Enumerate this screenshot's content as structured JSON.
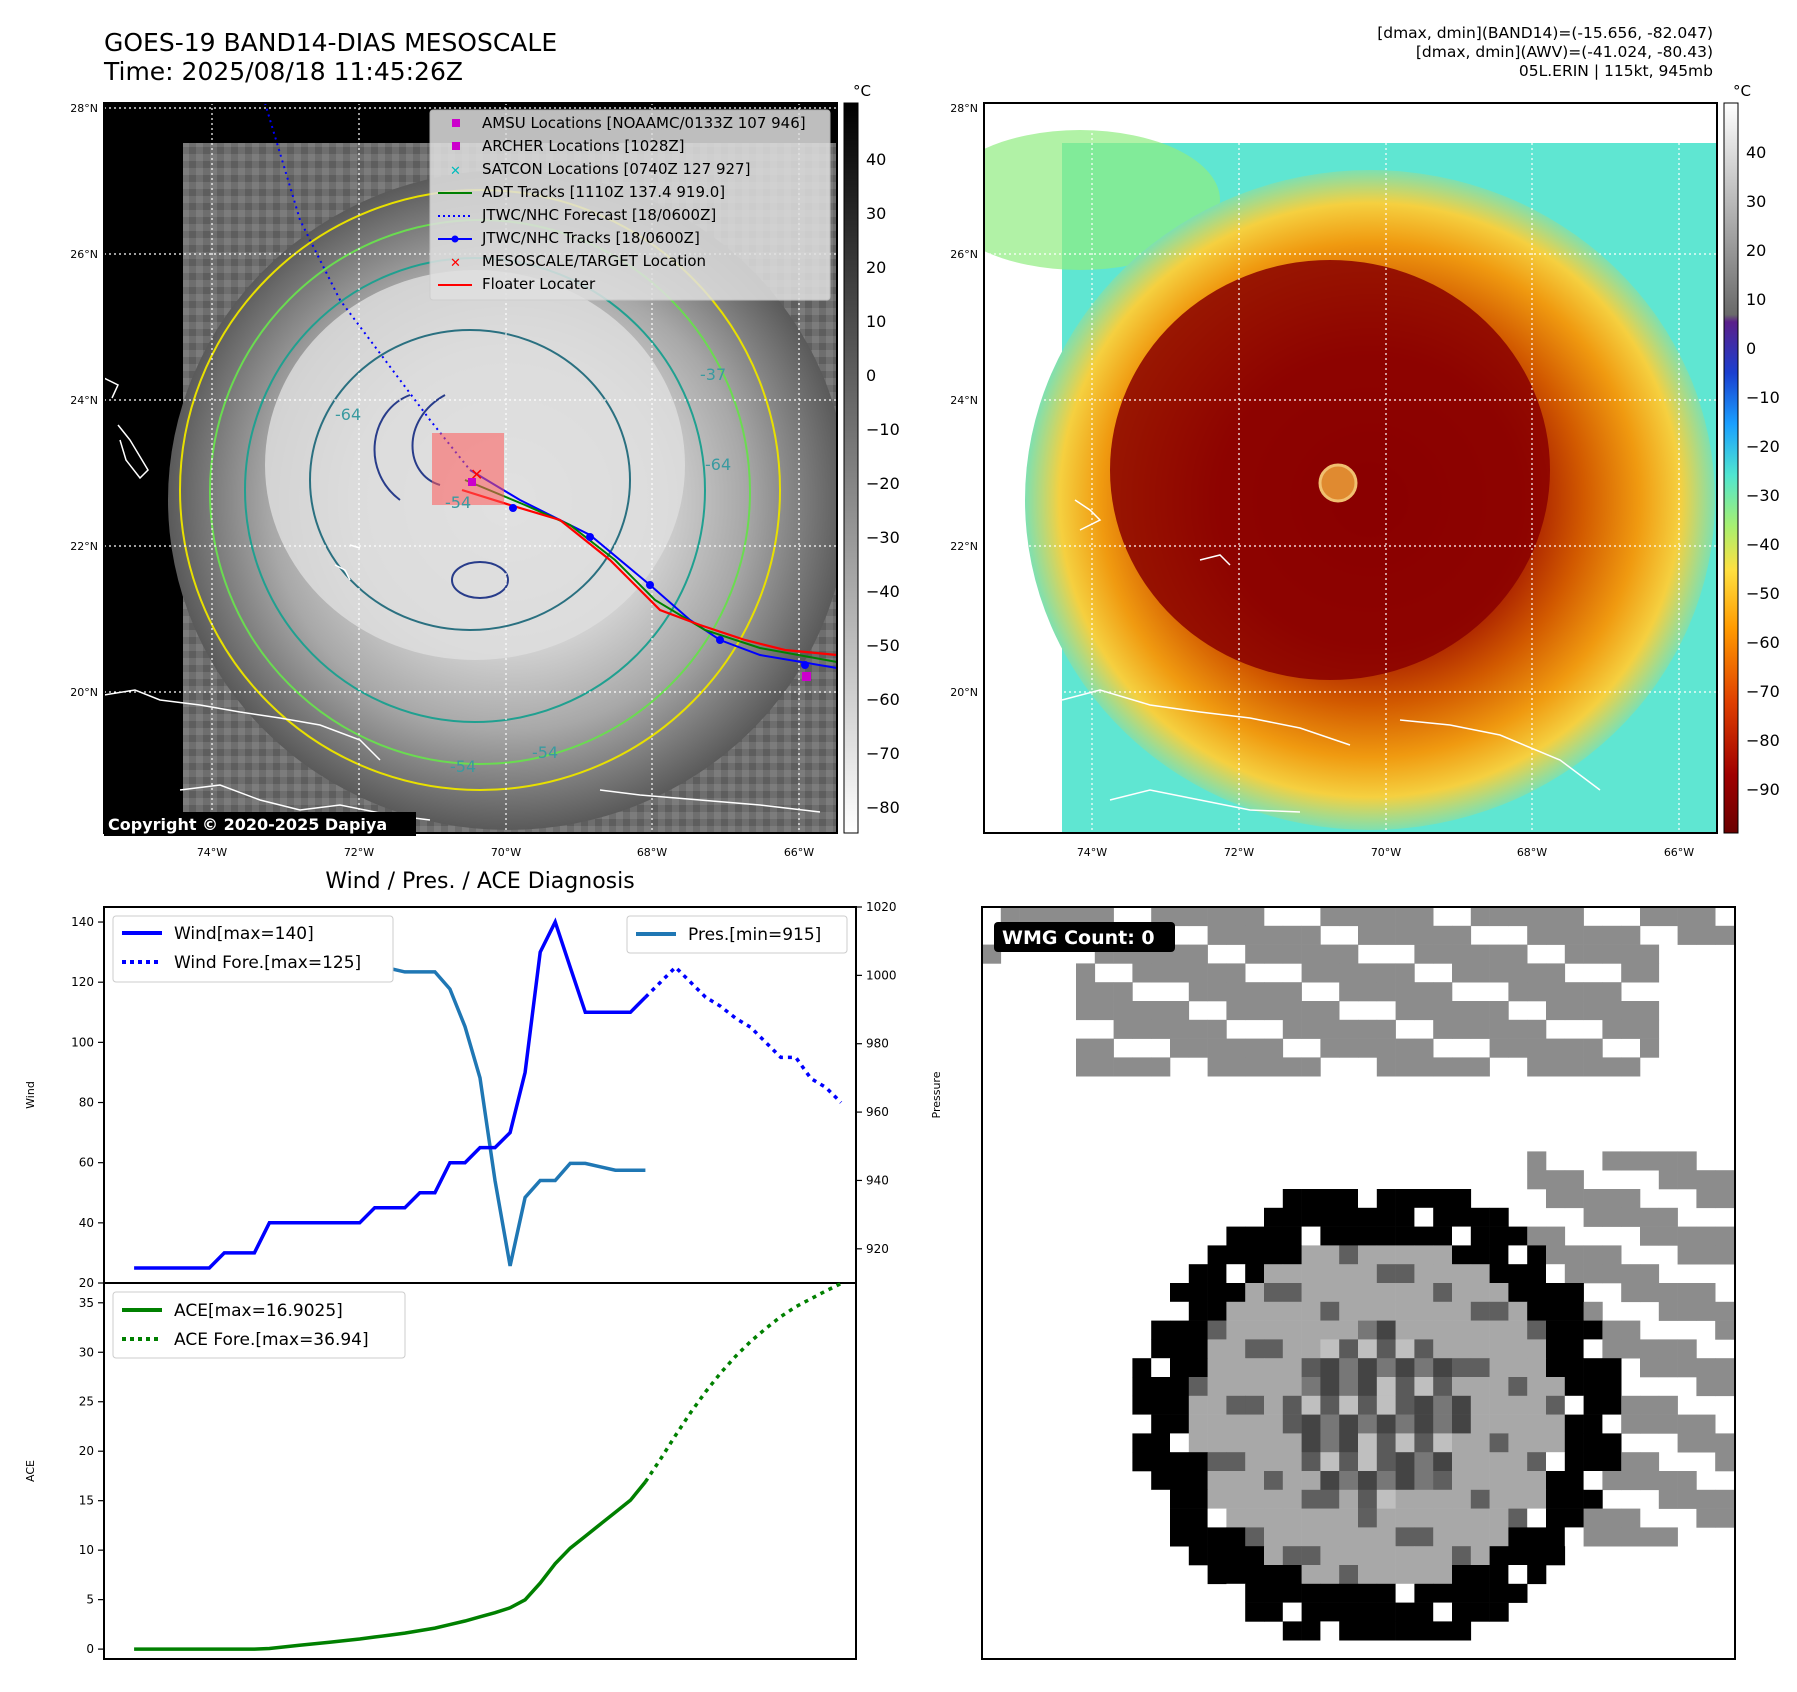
{
  "header": {
    "title_line1": "GOES-19 BAND14-DIAS MESOSCALE",
    "title_line2": "Time: 2025/08/18 11:45:26Z",
    "info_line1": "[dmax, dmin](BAND14)=(-15.656, -82.047)",
    "info_line2": "[dmax, dmin](AWV)=(-41.024, -80.43)",
    "info_line3": "05L.ERIN | 115kt, 945mb"
  },
  "map": {
    "lat_labels": [
      "28°N",
      "26°N",
      "24°N",
      "22°N",
      "20°N"
    ],
    "lon_labels": [
      "74°W",
      "72°W",
      "70°W",
      "68°W",
      "66°W"
    ],
    "copyright": "Copyright © 2020-2025 Dapiya",
    "contour_labels": [
      "-64",
      "-54",
      "-37",
      "-64",
      "-54",
      "-54"
    ]
  },
  "colorbar_gray": {
    "unit": "°C",
    "ticks": [
      "40",
      "30",
      "20",
      "10",
      "0",
      "−10",
      "−20",
      "−30",
      "−40",
      "−50",
      "−60",
      "−70",
      "−80"
    ]
  },
  "colorbar_color": {
    "unit": "°C",
    "ticks": [
      "40",
      "30",
      "20",
      "10",
      "0",
      "−10",
      "−20",
      "−30",
      "−40",
      "−50",
      "−60",
      "−70",
      "−80",
      "−90"
    ]
  },
  "legend": {
    "items": [
      {
        "label": "AMSU Locations [NOAAMC/0133Z 107 946]",
        "marker": "square",
        "color": "#cc00cc"
      },
      {
        "label": "ARCHER Locations [1028Z]",
        "marker": "square",
        "color": "#cc00cc"
      },
      {
        "label": "SATCON Locations [0740Z 127 927]",
        "marker": "x",
        "color": "#00bcbc"
      },
      {
        "label": "ADT Tracks [1110Z 137.4 919.0]",
        "marker": "line",
        "color": "#008000"
      },
      {
        "label": "JTWC/NHC Forecast [18/0600Z]",
        "marker": "dotted",
        "color": "#0000ff"
      },
      {
        "label": "JTWC/NHC Tracks [18/0600Z]",
        "marker": "line-dot",
        "color": "#0000ff"
      },
      {
        "label": "MESOSCALE/TARGET Location",
        "marker": "x",
        "color": "#ff0000"
      },
      {
        "label": "Floater Locater",
        "marker": "line",
        "color": "#ff0000"
      }
    ]
  },
  "wmg": {
    "label": "WMG Count: 0"
  },
  "chart_data": [
    {
      "type": "line",
      "title": "Wind / Pres. / ACE Diagnosis",
      "ylabel": "Wind",
      "ylim": [
        20,
        145
      ],
      "yticks": [
        20,
        40,
        60,
        80,
        100,
        120,
        140
      ],
      "xlim": [
        -2,
        48
      ],
      "series": [
        {
          "name": "Wind[max=140]",
          "style": "solid",
          "color": "#0000ff",
          "x": [
            0,
            1,
            2,
            3,
            4,
            5,
            6,
            7,
            8,
            9,
            10,
            11,
            12,
            13,
            14,
            15,
            16,
            17,
            18,
            19,
            20,
            21,
            22,
            23,
            24,
            25,
            26,
            27,
            28,
            29,
            30,
            31,
            32,
            33,
            34
          ],
          "values": [
            25,
            25,
            25,
            25,
            25,
            25,
            30,
            30,
            30,
            40,
            40,
            40,
            40,
            40,
            40,
            40,
            45,
            45,
            45,
            50,
            50,
            60,
            60,
            65,
            65,
            70,
            90,
            130,
            140,
            125,
            110,
            110,
            110,
            110,
            115
          ]
        },
        {
          "name": "Wind Fore.[max=125]",
          "style": "dotted",
          "color": "#0000ff",
          "x": [
            34,
            35,
            36,
            37,
            38,
            39,
            40,
            41,
            42,
            43,
            44,
            45,
            46,
            47
          ],
          "values": [
            115,
            120,
            125,
            120,
            115,
            112,
            108,
            105,
            100,
            95,
            95,
            88,
            85,
            80
          ]
        }
      ]
    },
    {
      "type": "line",
      "ylabel": "Pressure",
      "ylim": [
        910,
        1020
      ],
      "yticks": [
        920,
        940,
        960,
        980,
        1000,
        1020
      ],
      "xlim": [
        -2,
        48
      ],
      "series": [
        {
          "name": "Pres.[min=915]",
          "style": "solid",
          "color": "#1f77b4",
          "x": [
            0,
            1,
            2,
            3,
            4,
            5,
            6,
            7,
            8,
            9,
            10,
            11,
            12,
            13,
            14,
            15,
            16,
            17,
            18,
            19,
            20,
            21,
            22,
            23,
            24,
            25,
            26,
            27,
            28,
            29,
            30,
            31,
            32,
            33,
            34
          ],
          "values": [
            1014,
            1014,
            1010,
            1008,
            1008,
            1008,
            1008,
            1008,
            1007,
            1006,
            1006,
            1005,
            1007,
            1006,
            1004,
            1004,
            1004,
            1002,
            1001,
            1001,
            1001,
            996,
            985,
            970,
            940,
            915,
            935,
            940,
            940,
            945,
            945,
            944,
            943,
            943,
            943
          ]
        }
      ]
    },
    {
      "type": "line",
      "ylabel": "ACE",
      "ylim": [
        -1,
        37
      ],
      "yticks": [
        0,
        5,
        10,
        15,
        20,
        25,
        30,
        35
      ],
      "xlim": [
        -2,
        48
      ],
      "series": [
        {
          "name": "ACE[max=16.9025]",
          "style": "solid",
          "color": "#008000",
          "x": [
            0,
            1,
            2,
            3,
            4,
            5,
            6,
            7,
            8,
            9,
            10,
            11,
            12,
            13,
            14,
            15,
            16,
            17,
            18,
            19,
            20,
            21,
            22,
            23,
            24,
            25,
            26,
            27,
            28,
            29,
            30,
            31,
            32,
            33,
            34
          ],
          "values": [
            0,
            0,
            0,
            0,
            0,
            0,
            0,
            0,
            0,
            0.06,
            0.22,
            0.38,
            0.54,
            0.7,
            0.86,
            1.02,
            1.22,
            1.42,
            1.62,
            1.87,
            2.12,
            2.48,
            2.84,
            3.26,
            3.68,
            4.17,
            4.98,
            6.67,
            8.63,
            10.2,
            11.41,
            12.62,
            13.83,
            15.04,
            16.9025
          ]
        },
        {
          "name": "ACE Fore.[max=36.94]",
          "style": "dotted",
          "color": "#008000",
          "x": [
            34,
            35,
            36,
            37,
            38,
            39,
            40,
            41,
            42,
            43,
            44,
            45,
            46,
            47
          ],
          "values": [
            16.9025,
            19.2,
            21.6,
            23.9,
            26.0,
            27.9,
            29.6,
            31.1,
            32.4,
            33.6,
            34.6,
            35.4,
            36.2,
            36.94
          ]
        }
      ]
    }
  ]
}
